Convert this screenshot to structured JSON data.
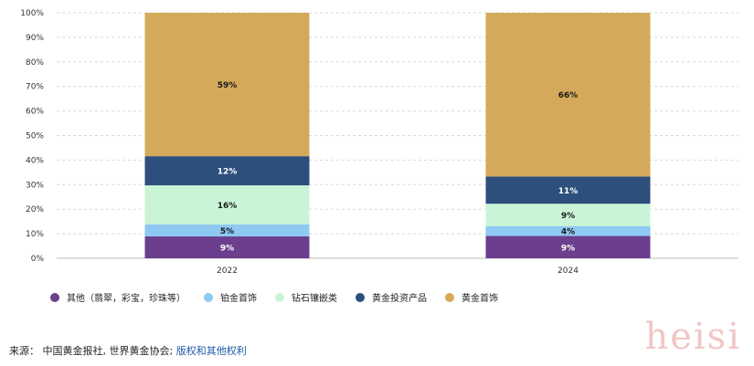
{
  "chart_data": {
    "type": "bar",
    "stacked": true,
    "normalized_percent": true,
    "categories": [
      "2022",
      "2024"
    ],
    "series": [
      {
        "name": "其他（翡翠，彩宝，珍珠等）",
        "values": [
          9,
          9
        ],
        "labels": [
          "9%",
          "9%"
        ],
        "color": "#6b3f8e",
        "label_color": "#ffffff"
      },
      {
        "name": "铂金首饰",
        "values": [
          5,
          4
        ],
        "labels": [
          "5%",
          "4%"
        ],
        "color": "#8ec9f2",
        "label_color": "#1a1a1a"
      },
      {
        "name": "钻石镶嵌类",
        "values": [
          16,
          9
        ],
        "labels": [
          "16%",
          "9%"
        ],
        "color": "#c9f5d6",
        "label_color": "#1a1a1a"
      },
      {
        "name": "黄金投资产品",
        "values": [
          12,
          11
        ],
        "labels": [
          "12%",
          "11%"
        ],
        "color": "#2d4f7c",
        "label_color": "#ffffff"
      },
      {
        "name": "黄金首饰",
        "values": [
          59,
          66
        ],
        "labels": [
          "59%",
          "66%"
        ],
        "color": "#d4aa5a",
        "label_color": "#1a1a1a"
      }
    ],
    "yticks": [
      "0%",
      "10%",
      "20%",
      "30%",
      "40%",
      "50%",
      "60%",
      "70%",
      "80%",
      "90%",
      "100%"
    ],
    "ylim": [
      0,
      100
    ],
    "grid": true,
    "legend_position": "bottom"
  },
  "footer": {
    "source_prefix": "来源：  中国黄金报社, 世界黄金协会; ",
    "source_link": "版权和其他权利"
  },
  "watermark": "heisi"
}
